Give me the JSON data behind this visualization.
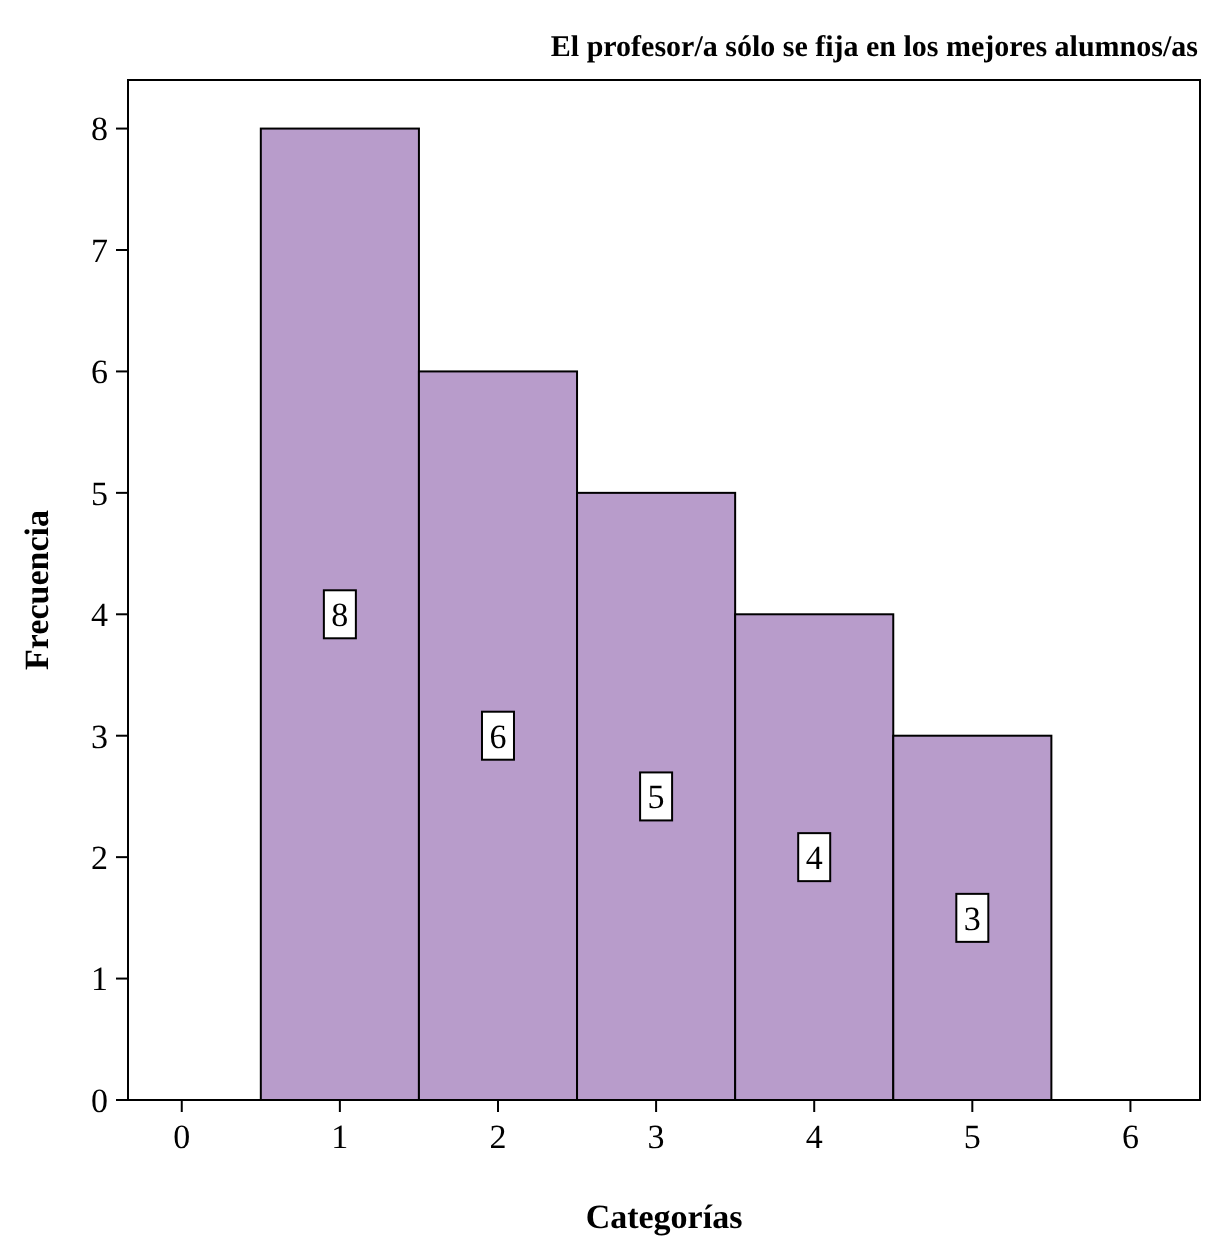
{
  "chart_data": {
    "type": "histogram",
    "title": "El profesor/a sólo se fija en los mejores alumnos/as",
    "xlabel": "Categorías",
    "ylabel": "Frecuencia",
    "bins": [
      0.5,
      1.5,
      2.5,
      3.5,
      4.5,
      5.5
    ],
    "values": [
      8,
      6,
      5,
      4,
      3
    ],
    "color": "#b89ccb",
    "data_labels": true,
    "xlim": [
      -0.34,
      6.44
    ],
    "xticks": [
      0,
      1,
      2,
      3,
      4,
      5,
      6
    ],
    "ylim": [
      0,
      8.4
    ],
    "yticks": [
      0,
      1,
      2,
      3,
      4,
      5,
      6,
      7,
      8
    ],
    "grid": false
  }
}
